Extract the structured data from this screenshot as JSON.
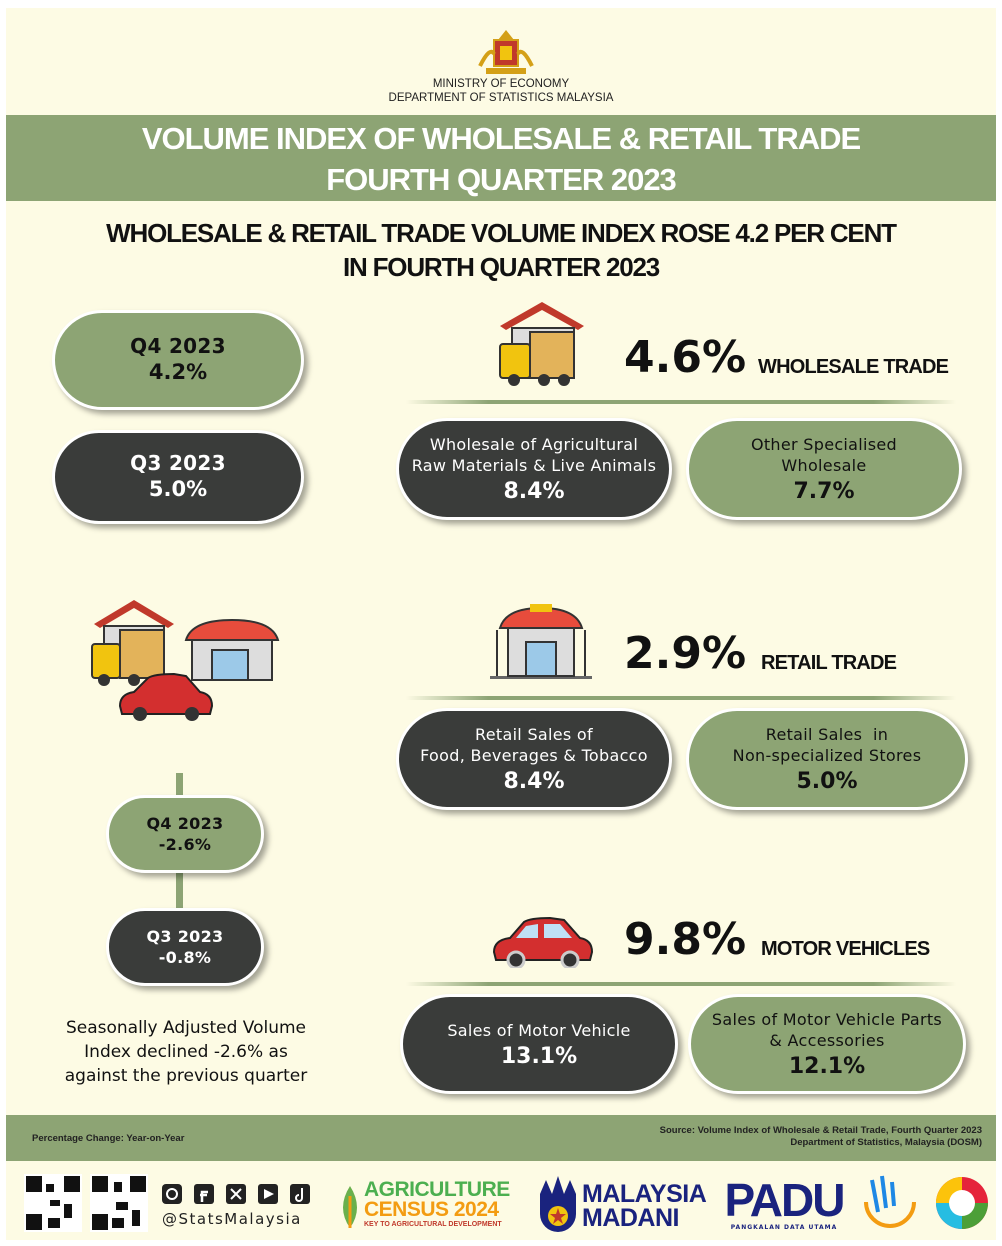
{
  "header": {
    "ministry": "MINISTRY OF ECONOMY",
    "department": "DEPARTMENT OF STATISTICS MALAYSIA",
    "title": [
      "VOLUME INDEX OF WHOLESALE & RETAIL TRADE",
      "FOURTH QUARTER 2023"
    ],
    "headline": [
      "WHOLESALE & RETAIL TRADE VOLUME INDEX ROSE 4.2 PER CENT",
      "IN FOURTH QUARTER 2023"
    ]
  },
  "overall": [
    {
      "label": "Q4 2023",
      "value": "4.2%"
    },
    {
      "label": "Q3 2023",
      "value": "5.0%"
    }
  ],
  "sections": [
    {
      "value": "4.6%",
      "name": "WHOLESALE TRADE",
      "items": [
        {
          "label": [
            "Wholesale of Agricultural",
            "Raw Materials & Live Animals"
          ],
          "value": "8.4%"
        },
        {
          "label": [
            "Other Specialised",
            "Wholesale"
          ],
          "value": "7.7%"
        }
      ]
    },
    {
      "value": "2.9%",
      "name": "RETAIL TRADE",
      "items": [
        {
          "label": [
            "Retail Sales of",
            "Food, Beverages & Tobacco"
          ],
          "value": "8.4%"
        },
        {
          "label": [
            "Retail Sales  in",
            "Non-specialized Stores"
          ],
          "value": "5.0%"
        }
      ]
    },
    {
      "value": "9.8%",
      "name": "MOTOR VEHICLES",
      "items": [
        {
          "label": [
            "Sales of Motor Vehicle"
          ],
          "value": "13.1%"
        },
        {
          "label": [
            "Sales of Motor Vehicle Parts",
            "& Accessories"
          ],
          "value": "12.1%"
        }
      ]
    }
  ],
  "seasonal": {
    "pills": [
      {
        "label": "Q4 2023",
        "value": "-2.6%"
      },
      {
        "label": "Q3 2023",
        "value": "-0.8%"
      }
    ],
    "note": [
      "Seasonally Adjusted Volume",
      "Index declined -2.6% as",
      "against the previous quarter"
    ]
  },
  "footer": {
    "note": "Percentage Change: Year-on-Year",
    "source": [
      "Source: Volume Index of Wholesale & Retail Trade, Fourth Quarter 2023",
      "Department of Statistics, Malaysia (DOSM)"
    ]
  },
  "logos": {
    "handle": "@StatsMalaysia",
    "agriculture": [
      "AGRICULTURE",
      "CENSUS 2024"
    ],
    "agriculture_tag": "KEY TO AGRICULTURAL DEVELOPMENT",
    "madani": [
      "MALAYSIA",
      "MADANI"
    ],
    "padu": "PADU",
    "padu_tag": "PANGKALAN DATA UTAMA"
  }
}
